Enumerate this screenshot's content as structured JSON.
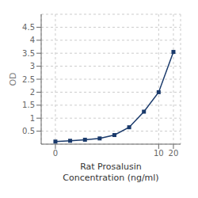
{
  "chart_data": {
    "type": "line",
    "x": [
      0.078,
      0.156,
      0.313,
      0.625,
      1.25,
      2.5,
      5,
      10,
      20
    ],
    "values": [
      0.1,
      0.13,
      0.17,
      0.22,
      0.35,
      0.65,
      1.25,
      2.0,
      3.55
    ],
    "xlabel": "Rat Prosalusin\nConcentration (ng/ml)",
    "ylabel": "OD",
    "log": "x",
    "xlim": [
      0.04,
      28
    ],
    "ylim": [
      0,
      5
    ],
    "xticks": [
      {
        "value": 0.078,
        "label": "0"
      },
      10,
      20
    ],
    "yticks": [
      0.5,
      1,
      1.5,
      2,
      2.5,
      3,
      3.5,
      4,
      4.5
    ],
    "grid": true,
    "color": "#1a3a6b",
    "marker": "square"
  }
}
